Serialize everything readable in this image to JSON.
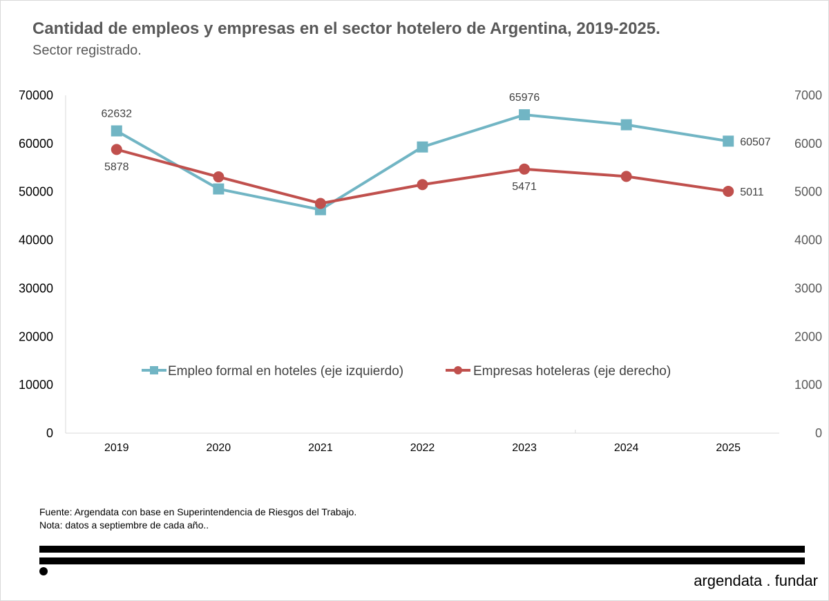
{
  "title": "Cantidad de empleos y empresas en el sector hotelero de Argentina, 2019-2025.",
  "subtitle": "Sector registrado.",
  "chart_data": {
    "type": "line",
    "categories": [
      "2019",
      "2020",
      "2021",
      "2022",
      "2023",
      "2024",
      "2025"
    ],
    "series": [
      {
        "name": "Empleo formal en hoteles (eje izquierdo)",
        "axis": "left",
        "marker": "square",
        "color": "#71b5c4",
        "values": [
          62632,
          50600,
          46300,
          59300,
          65976,
          63900,
          60507
        ],
        "data_labels": [
          {
            "index": 0,
            "text": "62632",
            "position": "above"
          },
          {
            "index": 4,
            "text": "65976",
            "position": "above"
          },
          {
            "index": 6,
            "text": "60507",
            "position": "right"
          }
        ]
      },
      {
        "name": "Empresas hoteleras (eje derecho)",
        "axis": "right",
        "marker": "circle",
        "color": "#c0504d",
        "values": [
          5878,
          5310,
          4760,
          5150,
          5471,
          5320,
          5011
        ],
        "data_labels": [
          {
            "index": 0,
            "text": "5878",
            "position": "below"
          },
          {
            "index": 4,
            "text": "5471",
            "position": "below"
          },
          {
            "index": 6,
            "text": "5011",
            "position": "right"
          }
        ]
      }
    ],
    "left_axis": {
      "min": 0,
      "max": 70000,
      "ticks": [
        "0",
        "10000",
        "20000",
        "30000",
        "40000",
        "50000",
        "60000",
        "70000"
      ]
    },
    "right_axis": {
      "min": 0,
      "max": 7000,
      "ticks": [
        "0",
        "1000",
        "2000",
        "3000",
        "4000",
        "5000",
        "6000",
        "7000"
      ]
    },
    "grid": false,
    "legend_position": "center"
  },
  "source": "Fuente: Argendata con base en Superintendencia de Riesgos del Trabajo.",
  "note": "Nota: datos a septiembre de cada año..",
  "brand": "argendata . fundar"
}
